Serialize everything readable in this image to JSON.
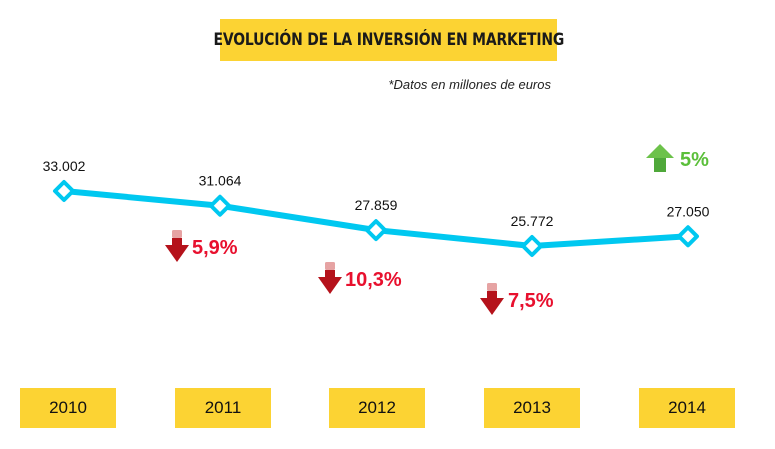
{
  "title": "EVOLUCIÓN DE LA INVERSIÓN EN MARKETING",
  "subtitle": "*Datos en millones de euros",
  "colors": {
    "line": "#00c8f0",
    "label_box": "#fcd333",
    "decrease": "#e8102e",
    "increase": "#5bbf3a"
  },
  "chart_data": {
    "type": "line",
    "categories": [
      "2010",
      "2011",
      "2012",
      "2013",
      "2014"
    ],
    "values": [
      33002,
      31064,
      27859,
      25772,
      27050
    ],
    "value_labels": [
      "33.002",
      "31.064",
      "27.859",
      "25.772",
      "27.050"
    ],
    "changes": [
      {
        "year": "2011",
        "label": "5,9%",
        "direction": "down"
      },
      {
        "year": "2012",
        "label": "10,3%",
        "direction": "down"
      },
      {
        "year": "2013",
        "label": "7,5%",
        "direction": "down"
      },
      {
        "year": "2014",
        "label": "5%",
        "direction": "up"
      }
    ],
    "title": "EVOLUCIÓN DE LA INVERSIÓN EN MARKETING",
    "grid": false,
    "legend": "none"
  }
}
